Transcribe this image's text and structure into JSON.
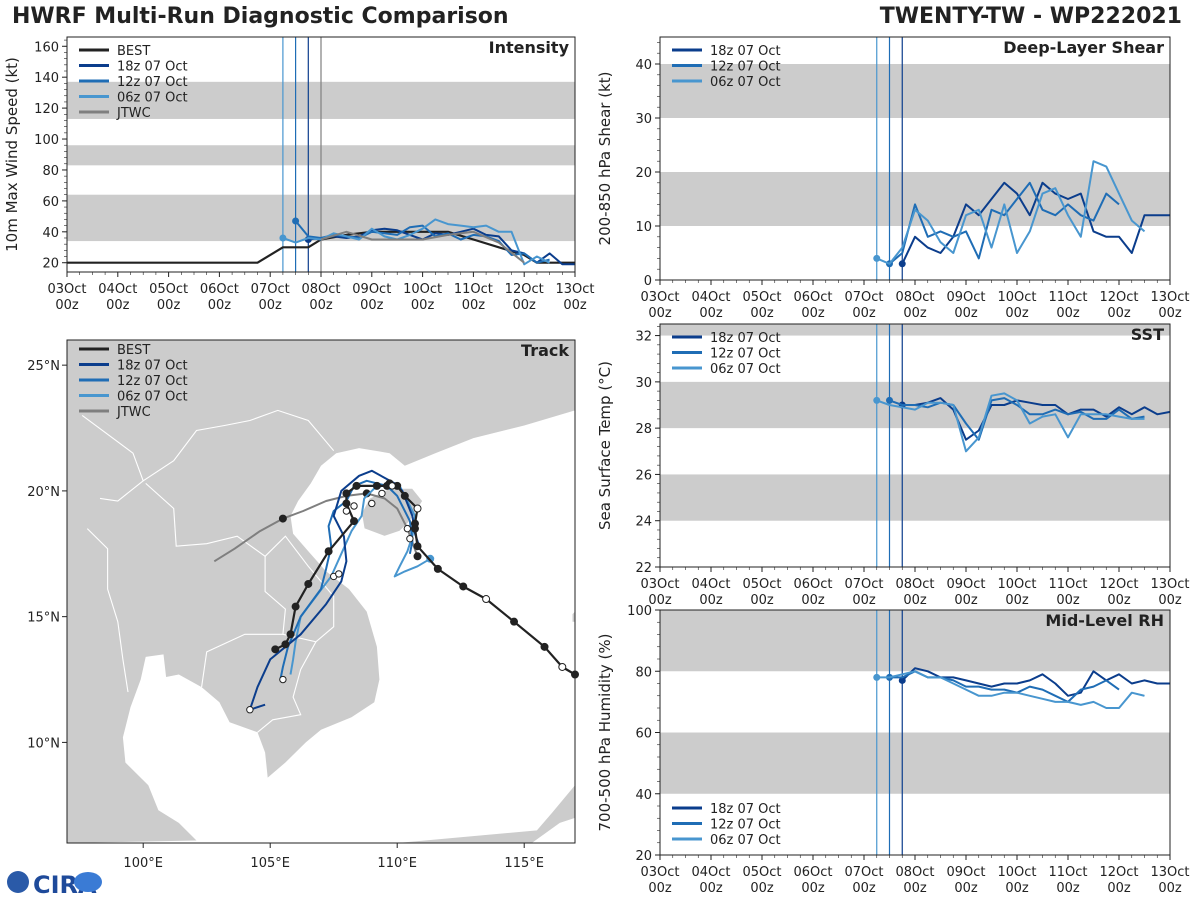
{
  "header": {
    "title": "HWRF Multi-Run Diagnostic Comparison",
    "storm": "TWENTY-TW - WP222021"
  },
  "colors": {
    "best": "#222222",
    "run18z": "#0b3d8c",
    "run12z": "#1f6db5",
    "run06z": "#4896cf",
    "jtwc": "#7f7f7f",
    "band": "#cccccc",
    "land": "#cccccc"
  },
  "x_axis": {
    "ticks": [
      0,
      1,
      2,
      3,
      4,
      5,
      6,
      7,
      8,
      9,
      10
    ],
    "labels": [
      [
        "03Oct",
        "00z"
      ],
      [
        "04Oct",
        "00z"
      ],
      [
        "05Oct",
        "00z"
      ],
      [
        "06Oct",
        "00z"
      ],
      [
        "07Oct",
        "00z"
      ],
      [
        "08Oct",
        "00z"
      ],
      [
        "09Oct",
        "00z"
      ],
      [
        "10Oct",
        "00z"
      ],
      [
        "11Oct",
        "00z"
      ],
      [
        "12Oct",
        "00z"
      ],
      [
        "13Oct",
        "00z"
      ]
    ]
  },
  "legend_runs": [
    "18z 07 Oct",
    "12z 07 Oct",
    "06z 07 Oct"
  ],
  "legend_full": [
    "BEST",
    "18z 07 Oct",
    "12z 07 Oct",
    "06z 07 Oct",
    "JTWC"
  ],
  "logo": {
    "text": "CIRA"
  },
  "chart_data": [
    {
      "id": "intensity",
      "type": "line",
      "title": "Intensity",
      "ylabel": "10m Max Wind Speed (kt)",
      "xlim": [
        0,
        10
      ],
      "ylim": [
        14,
        166
      ],
      "yticks": [
        20,
        40,
        60,
        80,
        100,
        120,
        140,
        160
      ],
      "bands": [
        [
          34,
          64
        ],
        [
          83,
          96
        ],
        [
          113,
          137
        ]
      ],
      "init_lines": [
        4.25,
        4.5,
        4.75,
        5.0
      ],
      "series": [
        {
          "name": "BEST",
          "x": [
            0,
            1,
            2,
            3,
            3.75,
            4.25,
            4.5,
            4.75,
            5.0,
            5.5,
            6.0,
            6.5,
            7.0,
            7.5,
            8.0,
            8.5,
            9.0,
            9.25,
            9.5,
            9.75,
            10.0
          ],
          "y": [
            20,
            20,
            20,
            20,
            20,
            30,
            30,
            30,
            35,
            38,
            40,
            40,
            40,
            40,
            35,
            30,
            25,
            20,
            20,
            20,
            20
          ]
        },
        {
          "name": "18z 07 Oct",
          "x": [
            4.75,
            5.0,
            5.25,
            5.5,
            5.75,
            6.0,
            6.25,
            6.5,
            6.75,
            7.0,
            7.25,
            7.5,
            7.75,
            8.0,
            8.25,
            8.5,
            8.75,
            9.0,
            9.25,
            9.5,
            9.75,
            10.0
          ],
          "y": [
            35,
            36,
            37,
            36,
            37,
            41,
            42,
            41,
            38,
            35,
            39,
            38,
            40,
            42,
            38,
            37,
            28,
            26,
            20,
            26,
            19,
            19
          ]
        },
        {
          "name": "12z 07 Oct",
          "x": [
            4.5,
            4.75,
            5.0,
            5.25,
            5.5,
            5.75,
            6.0,
            6.25,
            6.5,
            6.75,
            7.0,
            7.25,
            7.5,
            7.75,
            8.0,
            8.25,
            8.5,
            8.75,
            9.0,
            9.25,
            9.5
          ],
          "y": [
            47,
            37,
            36,
            38,
            37,
            36,
            40,
            39,
            38,
            43,
            44,
            37,
            39,
            35,
            38,
            37,
            34,
            25,
            26,
            20,
            22
          ]
        },
        {
          "name": "06z 07 Oct",
          "x": [
            4.25,
            4.5,
            4.75,
            5.0,
            5.25,
            5.5,
            5.75,
            6.0,
            6.25,
            6.5,
            6.75,
            7.0,
            7.25,
            7.5,
            7.75,
            8.0,
            8.25,
            8.5,
            8.75,
            9.0,
            9.25,
            9.5
          ],
          "y": [
            36,
            33,
            36,
            35,
            39,
            37,
            35,
            42,
            37,
            35,
            38,
            42,
            48,
            45,
            44,
            43,
            44,
            40,
            40,
            19,
            24,
            20
          ]
        },
        {
          "name": "JTWC",
          "x": [
            5.0,
            5.5,
            6.0,
            6.5,
            7.0,
            7.5,
            8.0,
            8.5,
            9.0
          ],
          "y": [
            35,
            40,
            35,
            35,
            35,
            38,
            40,
            33,
            20
          ]
        }
      ]
    },
    {
      "id": "shear",
      "type": "line",
      "title": "Deep-Layer Shear",
      "ylabel": "200-850 hPa Shear (kt)",
      "xlim": [
        0,
        10
      ],
      "ylim": [
        0,
        45
      ],
      "yticks": [
        0,
        10,
        20,
        30,
        40
      ],
      "bands": [
        [
          10,
          20
        ],
        [
          30,
          40
        ]
      ],
      "init_lines": [
        4.25,
        4.5,
        4.75
      ],
      "series": [
        {
          "name": "18z 07 Oct",
          "x": [
            4.75,
            5.0,
            5.25,
            5.5,
            5.75,
            6.0,
            6.25,
            6.5,
            6.75,
            7.0,
            7.25,
            7.5,
            7.75,
            8.0,
            8.25,
            8.5,
            8.75,
            9.0,
            9.25,
            9.5,
            9.75,
            10.0
          ],
          "y": [
            3,
            8,
            6,
            5,
            8,
            14,
            12,
            15,
            18,
            16,
            12,
            18,
            16,
            15,
            16,
            9,
            8,
            8,
            5,
            12,
            12,
            12
          ]
        },
        {
          "name": "12z 07 Oct",
          "x": [
            4.5,
            4.75,
            5.0,
            5.25,
            5.5,
            5.75,
            6.0,
            6.25,
            6.5,
            6.75,
            7.0,
            7.25,
            7.5,
            7.75,
            8.0,
            8.25,
            8.5,
            8.75,
            9.0
          ],
          "y": [
            3,
            5,
            14,
            8,
            9,
            8,
            9,
            4,
            13,
            12,
            15,
            18,
            13,
            12,
            14,
            12,
            11,
            16,
            14
          ]
        },
        {
          "name": "06z 07 Oct",
          "x": [
            4.25,
            4.5,
            4.75,
            5.0,
            5.25,
            5.5,
            5.75,
            6.0,
            6.25,
            6.5,
            6.75,
            7.0,
            7.25,
            7.5,
            7.75,
            8.0,
            8.25,
            8.5,
            8.75,
            9.0,
            9.25,
            9.5
          ],
          "y": [
            4,
            3,
            6,
            13,
            11,
            7,
            5,
            12,
            13,
            6,
            14,
            5,
            9,
            16,
            17,
            12,
            8,
            22,
            21,
            16,
            11,
            9
          ]
        }
      ]
    },
    {
      "id": "sst",
      "type": "line",
      "title": "SST",
      "ylabel": "Sea Surface Temp (°C)",
      "xlim": [
        0,
        10
      ],
      "ylim": [
        22,
        32.5
      ],
      "yticks": [
        22,
        24,
        26,
        28,
        30,
        32
      ],
      "bands": [
        [
          24,
          26
        ],
        [
          28,
          30
        ],
        [
          32,
          32.5
        ]
      ],
      "init_lines": [
        4.25,
        4.5,
        4.75
      ],
      "series": [
        {
          "name": "18z 07 Oct",
          "x": [
            4.75,
            5.0,
            5.25,
            5.5,
            5.75,
            6.0,
            6.25,
            6.5,
            6.75,
            7.0,
            7.25,
            7.5,
            7.75,
            8.0,
            8.25,
            8.5,
            8.75,
            9.0,
            9.25,
            9.5,
            9.75,
            10.0
          ],
          "y": [
            29.0,
            29.0,
            29.1,
            29.3,
            28.8,
            27.5,
            27.9,
            29.0,
            29.0,
            29.2,
            29.1,
            29.0,
            29.0,
            28.6,
            28.8,
            28.8,
            28.5,
            28.9,
            28.6,
            28.9,
            28.6,
            28.7
          ]
        },
        {
          "name": "12z 07 Oct",
          "x": [
            4.5,
            4.75,
            5.0,
            5.25,
            5.5,
            5.75,
            6.0,
            6.25,
            6.5,
            6.75,
            7.0,
            7.25,
            7.5,
            7.75,
            8.0,
            8.25,
            8.5,
            8.75,
            9.0,
            9.25,
            9.5
          ],
          "y": [
            29.2,
            29.0,
            29.0,
            28.9,
            29.1,
            29.0,
            28.2,
            27.5,
            29.2,
            29.3,
            29.0,
            28.6,
            28.6,
            28.8,
            28.6,
            28.7,
            28.4,
            28.4,
            28.8,
            28.4,
            28.5
          ]
        },
        {
          "name": "06z 07 Oct",
          "x": [
            4.25,
            4.5,
            4.75,
            5.0,
            5.25,
            5.5,
            5.75,
            6.0,
            6.25,
            6.5,
            6.75,
            7.0,
            7.25,
            7.5,
            7.75,
            8.0,
            8.25,
            8.5,
            8.75,
            9.0,
            9.25,
            9.5
          ],
          "y": [
            29.2,
            29.0,
            28.9,
            28.8,
            29.1,
            29.1,
            29.0,
            27.0,
            27.6,
            29.4,
            29.5,
            29.2,
            28.2,
            28.5,
            28.6,
            27.6,
            28.6,
            28.6,
            28.6,
            28.5,
            28.4,
            28.4
          ]
        }
      ]
    },
    {
      "id": "rh",
      "type": "line",
      "title": "Mid-Level RH",
      "ylabel": "700-500 hPa Humidity (%)",
      "xlim": [
        0,
        10
      ],
      "ylim": [
        20,
        100
      ],
      "yticks": [
        20,
        40,
        60,
        80,
        100
      ],
      "bands": [
        [
          40,
          60
        ],
        [
          80,
          100
        ]
      ],
      "init_lines": [
        4.25,
        4.5,
        4.75
      ],
      "series": [
        {
          "name": "18z 07 Oct",
          "x": [
            4.75,
            5.0,
            5.25,
            5.5,
            5.75,
            6.0,
            6.25,
            6.5,
            6.75,
            7.0,
            7.25,
            7.5,
            7.75,
            8.0,
            8.25,
            8.5,
            8.75,
            9.0,
            9.25,
            9.5,
            9.75,
            10.0
          ],
          "y": [
            77,
            81,
            80,
            78,
            78,
            77,
            76,
            75,
            76,
            76,
            77,
            79,
            76,
            72,
            73,
            80,
            77,
            79,
            76,
            77,
            76,
            76
          ]
        },
        {
          "name": "12z 07 Oct",
          "x": [
            4.5,
            4.75,
            5.0,
            5.25,
            5.5,
            5.75,
            6.0,
            6.25,
            6.5,
            6.75,
            7.0,
            7.25,
            7.5,
            7.75,
            8.0,
            8.25,
            8.5,
            8.75,
            9.0
          ],
          "y": [
            78,
            78,
            80,
            78,
            78,
            77,
            75,
            75,
            74,
            74,
            73,
            75,
            74,
            72,
            70,
            74,
            75,
            77,
            74
          ]
        },
        {
          "name": "06z 07 Oct",
          "x": [
            4.25,
            4.5,
            4.75,
            5.0,
            5.25,
            5.5,
            5.75,
            6.0,
            6.25,
            6.5,
            6.75,
            7.0,
            7.25,
            7.5,
            7.75,
            8.0,
            8.25,
            8.5,
            8.75,
            9.0,
            9.25,
            9.5
          ],
          "y": [
            78,
            78,
            79,
            80,
            78,
            78,
            76,
            74,
            72,
            72,
            73,
            73,
            72,
            71,
            70,
            70,
            69,
            70,
            68,
            68,
            73,
            72
          ]
        }
      ]
    },
    {
      "id": "track",
      "type": "scatter",
      "title": "Track",
      "xlim": [
        97,
        117
      ],
      "ylim": [
        6,
        26
      ],
      "xticks": [
        100,
        105,
        110,
        115
      ],
      "xtick_labels": [
        "100°E",
        "105°E",
        "110°E",
        "115°E"
      ],
      "yticks": [
        10,
        15,
        20,
        25
      ],
      "ytick_labels": [
        "10°N",
        "15°N",
        "20°N",
        "25°N"
      ],
      "series": [
        {
          "name": "BEST",
          "lon": [
            117.0,
            116.5,
            115.8,
            114.6,
            113.5,
            112.6,
            111.6,
            110.8,
            110.7,
            110.7,
            110.8,
            110.3,
            110.0,
            109.7,
            109.6,
            109.2,
            108.4,
            108.0,
            108.0,
            108.3,
            107.3,
            106.5,
            106.0,
            105.8,
            105.6,
            105.2
          ],
          "lat": [
            12.7,
            13.0,
            13.8,
            14.8,
            15.7,
            16.2,
            16.9,
            17.8,
            18.5,
            18.7,
            19.3,
            19.8,
            20.2,
            20.3,
            20.2,
            20.2,
            20.2,
            19.9,
            19.5,
            18.8,
            17.6,
            16.3,
            15.4,
            14.3,
            13.9,
            13.7
          ],
          "hollow": [
            1,
            4,
            10
          ]
        },
        {
          "name": "18z 07 Oct",
          "lon": [
            110.9,
            110.7,
            110.6,
            110.2,
            109.9,
            109.0,
            108.5,
            107.8,
            107.5,
            107.9,
            108.0,
            107.8,
            107.2,
            106.2,
            105.0,
            104.5,
            104.2,
            104.8
          ],
          "lat": [
            17.7,
            18.3,
            19.0,
            20.0,
            20.3,
            20.8,
            20.6,
            20.0,
            19.0,
            18.2,
            17.2,
            16.4,
            15.5,
            14.3,
            13.3,
            12.2,
            11.3,
            11.5
          ]
        },
        {
          "name": "12z 07 Oct",
          "lon": [
            110.5,
            110.6,
            110.5,
            110.0,
            109.6,
            108.8,
            108.3,
            108.0,
            107.5,
            107.3,
            107.4,
            107.2,
            107.0,
            106.2,
            105.7,
            105.5,
            105.4
          ],
          "lat": [
            17.5,
            18.0,
            18.8,
            19.8,
            20.2,
            20.4,
            20.2,
            19.6,
            19.2,
            18.6,
            17.8,
            16.9,
            16.1,
            15.0,
            13.8,
            13.0,
            12.5
          ]
        },
        {
          "name": "06z 07 Oct",
          "lon": [
            111.3,
            110.8,
            110.3,
            109.9,
            110.1,
            110.4,
            110.6,
            110.7,
            110.4,
            110.1,
            109.7,
            109.1,
            108.7,
            108.6,
            108.2,
            107.8,
            107.4,
            106.8,
            106.2,
            106.0,
            105.9,
            105.8
          ],
          "lat": [
            17.3,
            17.0,
            16.8,
            16.6,
            17.0,
            17.6,
            18.2,
            19.0,
            19.6,
            20.2,
            20.3,
            20.1,
            19.7,
            19.0,
            18.4,
            17.5,
            16.6,
            15.8,
            15.0,
            14.0,
            13.3,
            12.7
          ]
        },
        {
          "name": "JTWC",
          "lon": [
            110.8,
            110.4,
            110.0,
            109.5,
            108.8,
            108.0,
            107.2,
            106.3,
            105.5,
            104.6,
            103.6,
            102.8
          ],
          "lat": [
            17.4,
            18.5,
            19.3,
            19.7,
            19.9,
            19.8,
            19.6,
            19.2,
            18.9,
            18.4,
            17.7,
            17.2
          ]
        }
      ]
    }
  ]
}
